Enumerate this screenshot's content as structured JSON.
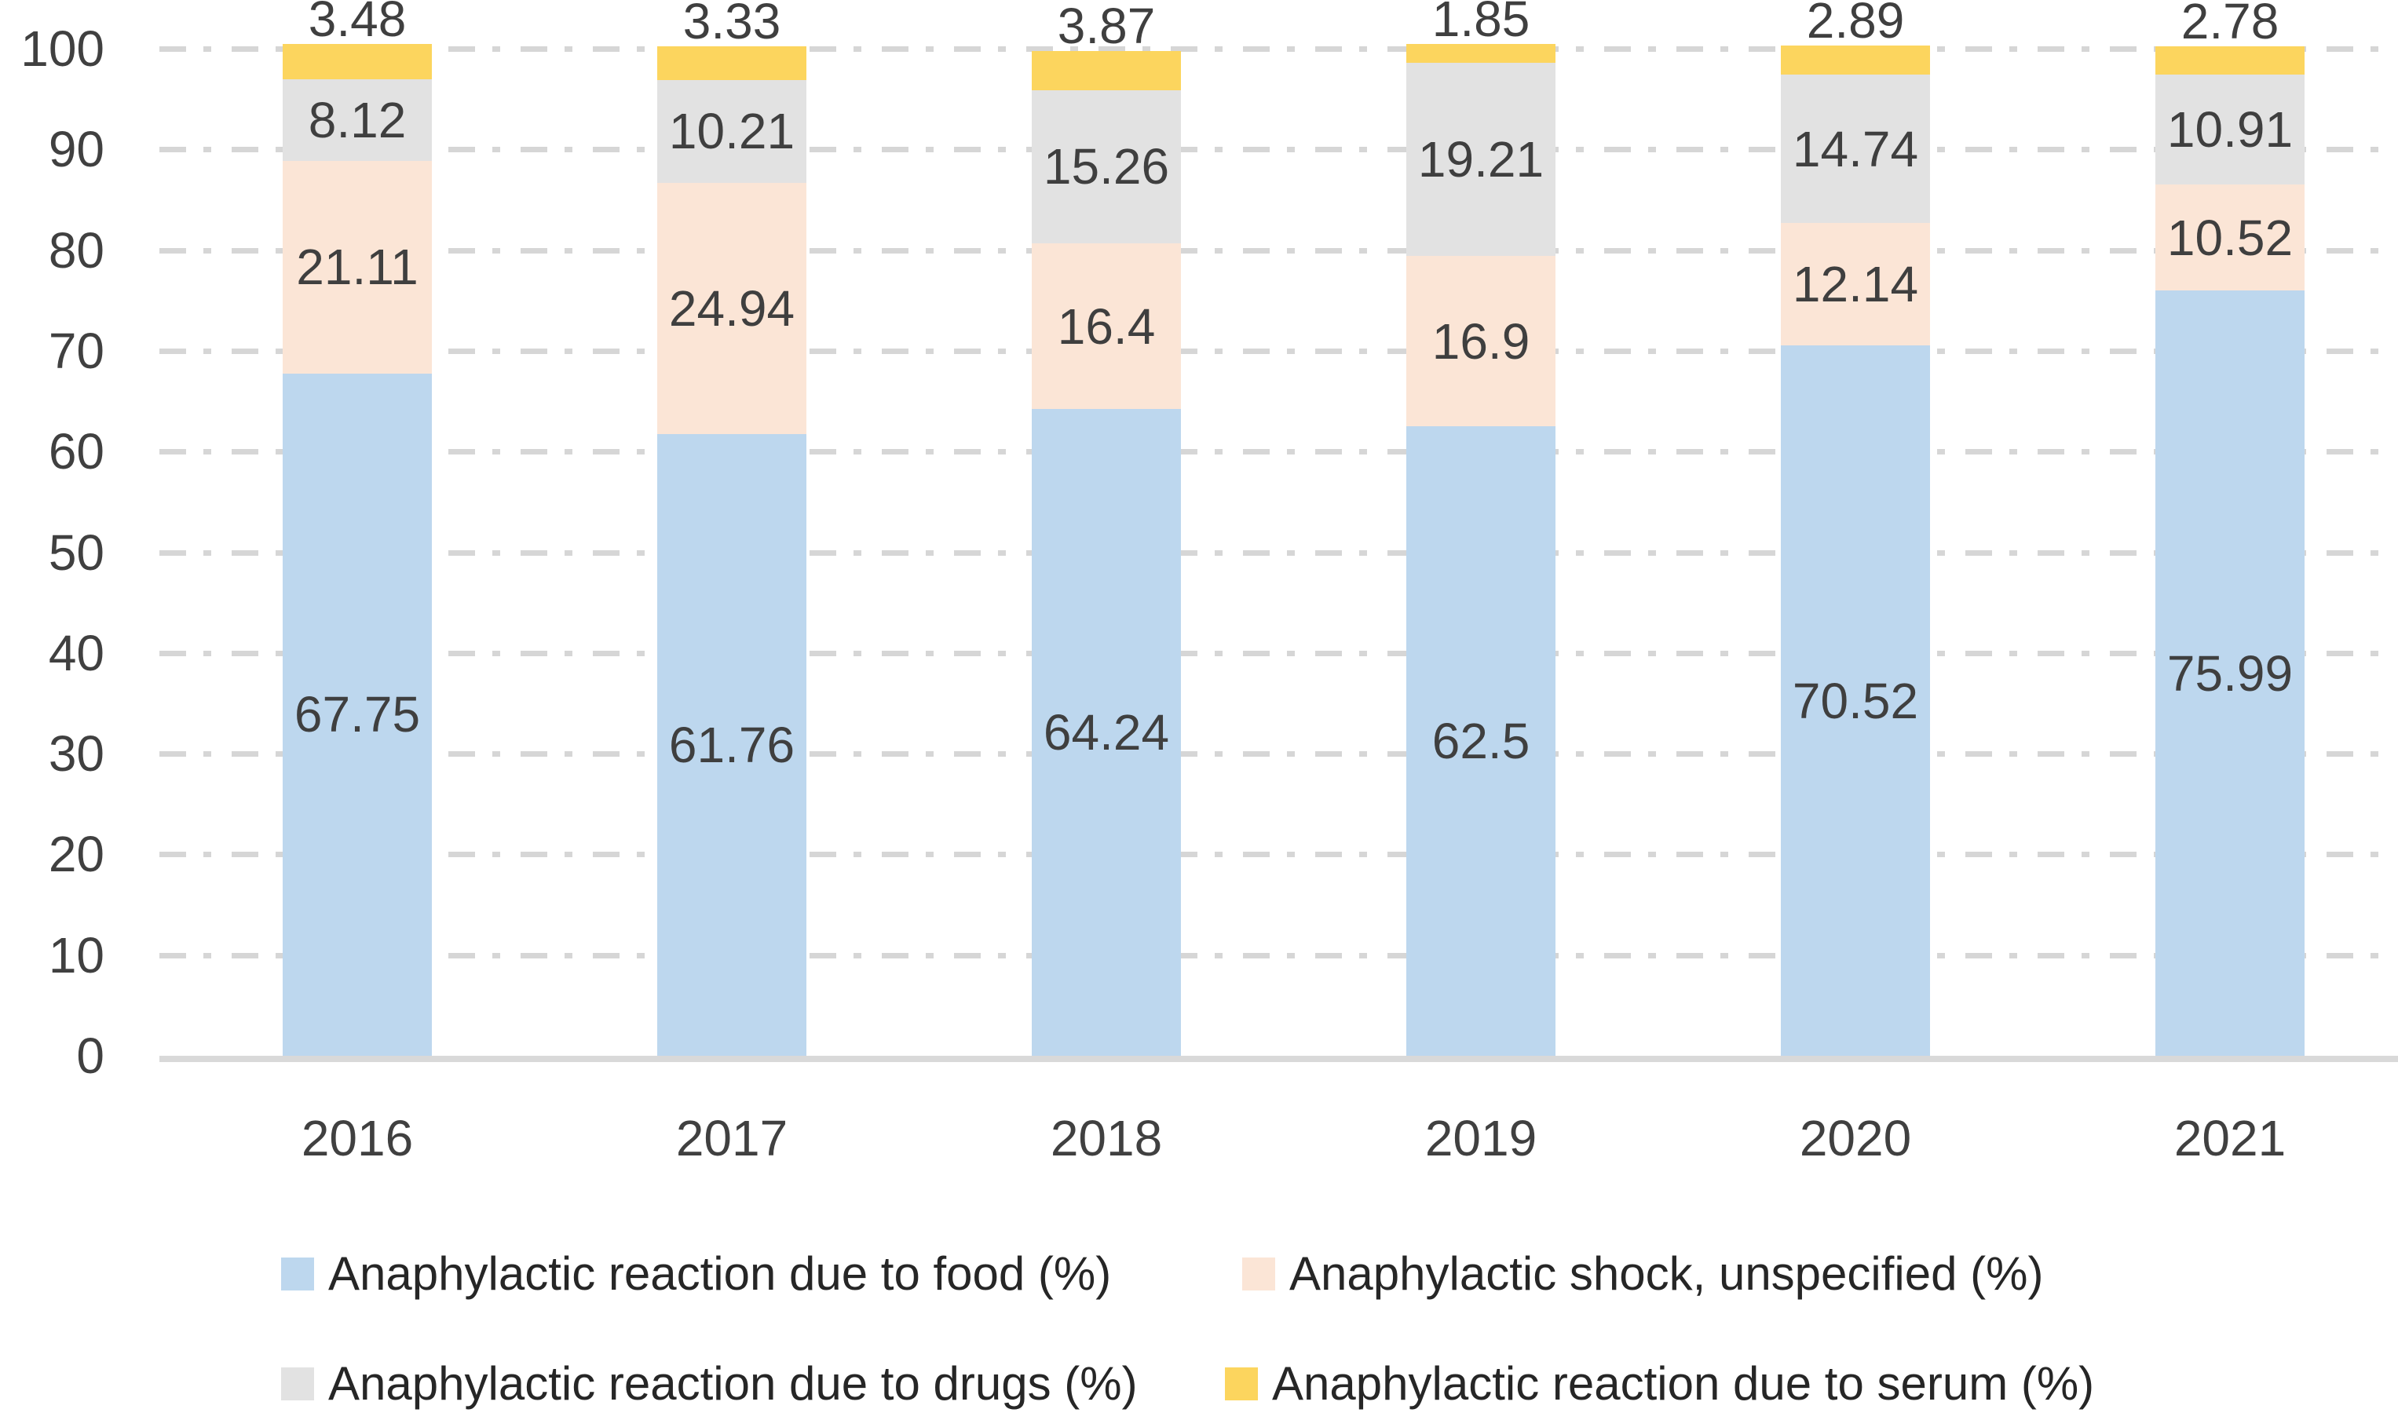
{
  "chart_data": {
    "type": "bar",
    "stacked": true,
    "title": "",
    "xlabel": "",
    "ylabel": "",
    "categories": [
      "2016",
      "2017",
      "2018",
      "2019",
      "2020",
      "2021"
    ],
    "series": [
      {
        "key": "food",
        "name": "Anaphylactic reaction due to food (%)",
        "color": "#BDD7EE",
        "label_placement": "center",
        "values": [
          67.75,
          61.76,
          64.24,
          62.5,
          70.52,
          75.99
        ]
      },
      {
        "key": "shock",
        "name": "Anaphylactic shock, unspecified (%)",
        "color": "#FBE5D6",
        "label_placement": "center",
        "values": [
          21.11,
          24.94,
          16.4,
          16.9,
          12.14,
          10.52
        ]
      },
      {
        "key": "drugs",
        "name": "Anaphylactic reaction due to drugs (%)",
        "color": "#E2E2E2",
        "label_placement": "center",
        "values": [
          8.12,
          10.21,
          15.26,
          19.21,
          14.74,
          10.91
        ]
      },
      {
        "key": "serum",
        "name": "Anaphylactic reaction due to serum (%)",
        "color": "#FCD55E",
        "label_placement": "outside-end",
        "values": [
          3.48,
          3.33,
          3.87,
          1.85,
          2.89,
          2.78
        ]
      }
    ],
    "ylim": [
      0,
      100
    ],
    "yticks": [
      0,
      10,
      20,
      30,
      40,
      50,
      60,
      70,
      80,
      90,
      100
    ],
    "grid": "horizontal-dash-dot",
    "legend_position": "bottom",
    "colors": {
      "gridline": "#D6D6D6",
      "axis_line": "#D9D9D9",
      "tick_label": "#404040",
      "data_label": "#3F3F3F",
      "legend_label": "#262626"
    }
  }
}
